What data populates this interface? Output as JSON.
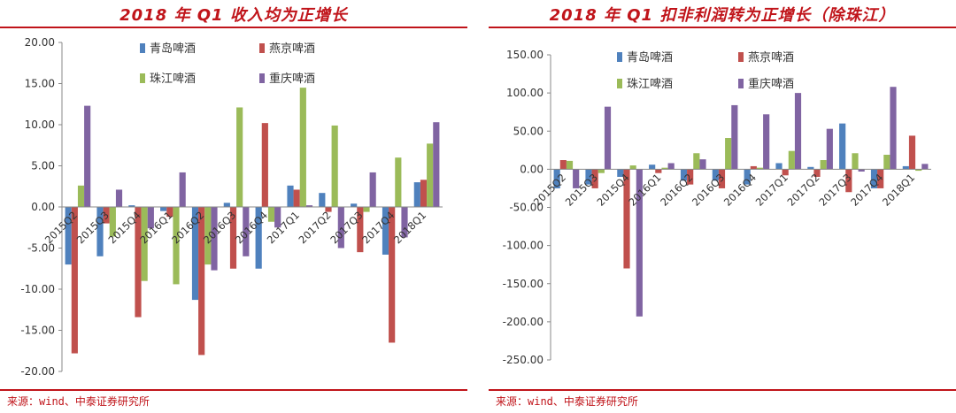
{
  "colors": {
    "title": "#C0141A",
    "axis": "#888888",
    "text": "#333333"
  },
  "chart_data": [
    {
      "type": "bar",
      "title": "2018 年 Q1 收入均为正增长",
      "source": "来源：wind、中泰证券研究所",
      "categories": [
        "2015Q2",
        "2015Q3",
        "2015Q4",
        "2016Q1",
        "2016Q2",
        "2016Q3",
        "2016Q4",
        "2017Q1",
        "2017Q2",
        "2017Q3",
        "2017Q4",
        "2018Q1"
      ],
      "ylim": [
        -20,
        20
      ],
      "yticks": [
        "-20.00",
        "-15.00",
        "-10.00",
        "-5.00",
        "0.00",
        "5.00",
        "10.00",
        "15.00",
        "20.00"
      ],
      "ytick_values": [
        -20,
        -15,
        -10,
        -5,
        0,
        5,
        10,
        15,
        20
      ],
      "legend_position": "top-center",
      "series": [
        {
          "name": "青岛啤酒",
          "color": "#4F81BD",
          "values": [
            -7.0,
            -6.0,
            0.2,
            -0.5,
            -11.3,
            0.5,
            -7.5,
            2.6,
            1.7,
            0.4,
            -5.8,
            3.0
          ]
        },
        {
          "name": "燕京啤酒",
          "color": "#C0504D",
          "values": [
            -17.8,
            -2.0,
            -13.4,
            -1.2,
            -18.0,
            -7.5,
            10.2,
            2.1,
            -0.6,
            -5.5,
            -16.5,
            3.3
          ]
        },
        {
          "name": "珠江啤酒",
          "color": "#9BBB59",
          "values": [
            2.6,
            -3.6,
            -9.0,
            -9.4,
            -7.0,
            12.1,
            -1.8,
            14.5,
            9.9,
            -0.6,
            6.0,
            7.7
          ]
        },
        {
          "name": "重庆啤酒",
          "color": "#8064A2",
          "values": [
            12.3,
            2.1,
            -2.6,
            4.2,
            -7.7,
            -6.0,
            -2.5,
            0.2,
            -5.0,
            4.2,
            -3.7,
            10.3
          ]
        }
      ]
    },
    {
      "type": "bar",
      "title": "2018 年 Q1 扣非利润转为正增长（除珠江）",
      "source": "来源：wind、中泰证券研究所",
      "categories": [
        "2015Q2",
        "2015Q3",
        "2015Q4",
        "2016Q1",
        "2016Q2",
        "2016Q3",
        "2016Q4",
        "2017Q1",
        "2017Q2",
        "2017Q3",
        "2017Q4",
        "2018Q1"
      ],
      "ylim": [
        -250,
        150
      ],
      "yticks": [
        "-250.00",
        "-200.00",
        "-150.00",
        "-100.00",
        "-50.00",
        "0.00",
        "50.00",
        "100.00",
        "150.00"
      ],
      "ytick_values": [
        -250,
        -200,
        -150,
        -100,
        -50,
        0,
        50,
        100,
        150
      ],
      "legend_position": "top-center",
      "series": [
        {
          "name": "青岛啤酒",
          "color": "#4F81BD",
          "values": [
            -25,
            -20,
            -10,
            6,
            -15,
            -15,
            -20,
            8,
            3,
            60,
            -25,
            4
          ]
        },
        {
          "name": "燕京啤酒",
          "color": "#C0504D",
          "values": [
            12,
            -25,
            -130,
            -5,
            -20,
            -25,
            4,
            -8,
            -10,
            -30,
            -25,
            44
          ]
        },
        {
          "name": "珠江啤酒",
          "color": "#9BBB59",
          "values": [
            11,
            -5,
            5,
            2,
            21,
            41,
            2,
            24,
            12,
            21,
            19,
            -2
          ]
        },
        {
          "name": "重庆啤酒",
          "color": "#8064A2",
          "values": [
            -25,
            82,
            -193,
            8,
            13,
            84,
            72,
            100,
            53,
            -3,
            108,
            7
          ]
        }
      ]
    }
  ]
}
